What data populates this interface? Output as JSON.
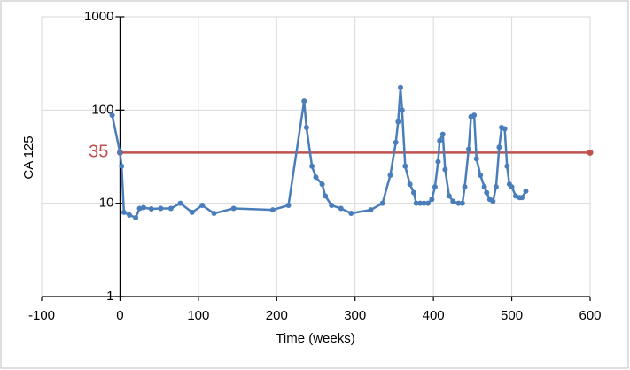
{
  "chart_data": {
    "type": "line",
    "x_label": "Time (weeks)",
    "y_label": "CA 125",
    "yscale": "log",
    "xlim": [
      -100,
      600
    ],
    "xticks": [
      -100,
      0,
      100,
      200,
      300,
      400,
      500,
      600
    ],
    "ylim": [
      1,
      1000
    ],
    "yticks": [
      1,
      10,
      100,
      1000
    ],
    "grid": true,
    "reference_line": {
      "y": 35,
      "x": [
        0,
        600
      ],
      "color": "#c0504d"
    },
    "series": [
      {
        "color": "#4a7ebb",
        "x": [
          -10,
          0,
          2,
          5,
          12,
          20,
          25,
          30,
          40,
          52,
          65,
          77,
          92,
          105,
          120,
          145,
          195,
          215,
          235,
          238,
          245,
          250,
          258,
          262,
          270,
          282,
          295,
          320,
          335,
          345,
          352,
          355,
          358,
          360,
          364,
          370,
          375,
          378,
          383,
          388,
          393,
          398,
          402,
          406,
          408,
          412,
          415,
          420,
          425,
          432,
          437,
          440,
          445,
          448,
          452,
          455,
          460,
          465,
          468,
          472,
          476,
          480,
          484,
          487,
          491,
          494,
          497,
          500,
          505,
          510,
          513,
          518
        ],
        "values": [
          88,
          35,
          25,
          8,
          7.5,
          7,
          8.8,
          9,
          8.7,
          8.8,
          8.8,
          10,
          8,
          9.5,
          7.8,
          8.8,
          8.5,
          9.5,
          125,
          65,
          25,
          19,
          16,
          12,
          9.5,
          8.8,
          7.8,
          8.5,
          10,
          20,
          45,
          75,
          175,
          100,
          25,
          16,
          13,
          10,
          10,
          10,
          10,
          11,
          15,
          28,
          47,
          55,
          23,
          12,
          10.5,
          10,
          10,
          15,
          38,
          85,
          88,
          30,
          20,
          15,
          13,
          11,
          10.5,
          15,
          40,
          65,
          63,
          25,
          16,
          15,
          12,
          11.5,
          11.5,
          13.5
        ]
      }
    ]
  }
}
